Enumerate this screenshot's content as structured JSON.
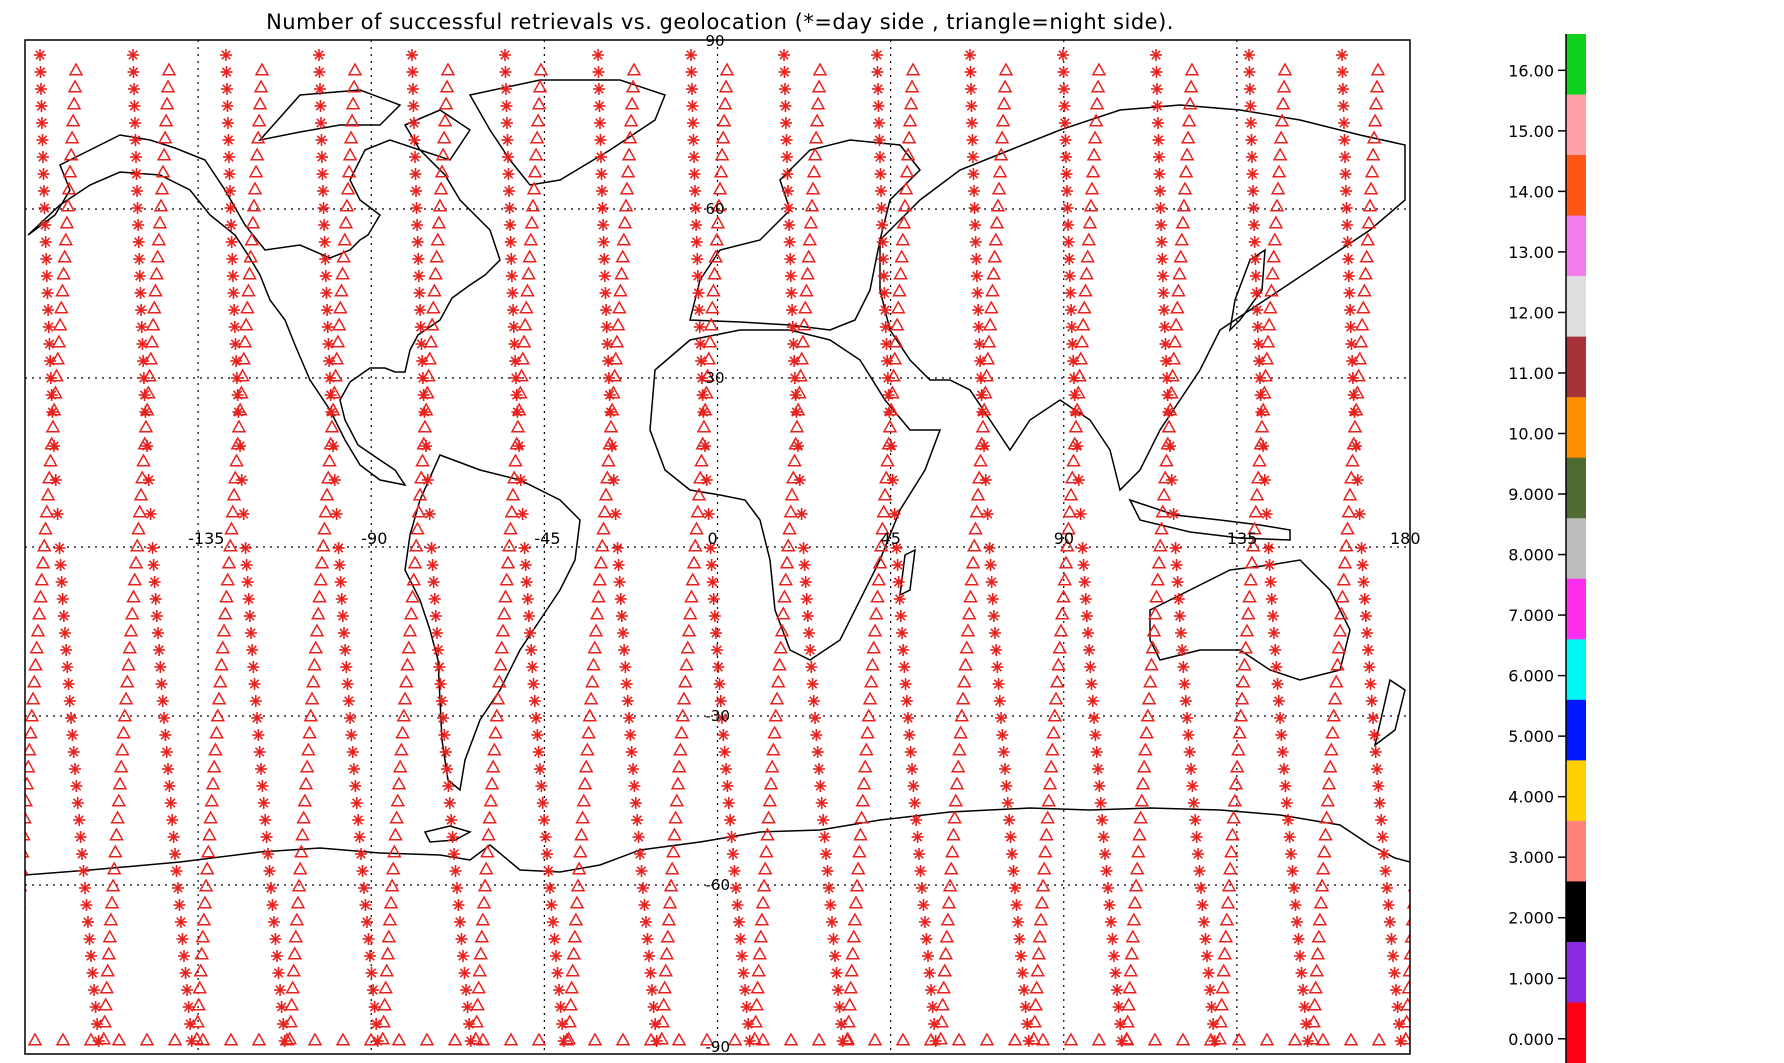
{
  "title": "Number of successful retrievals vs. geolocation (*=day side , triangle=night side).",
  "map": {
    "longitude_labels": [
      "-135",
      "-90",
      "-45",
      "0",
      "45",
      "90",
      "135",
      "180"
    ],
    "latitude_labels": [
      "90",
      "60",
      "30",
      "0",
      "-30",
      "-60",
      "-90"
    ],
    "lon_range": [
      -180,
      180
    ],
    "lat_range": [
      -90,
      90
    ],
    "grid_lons": [
      -135,
      -90,
      -45,
      0,
      45,
      90,
      135
    ],
    "grid_lats": [
      60,
      30,
      0,
      -30,
      -60
    ],
    "grid": "dotted",
    "coastline_color": "#000000"
  },
  "markers": {
    "day_symbol": "asterisk",
    "night_symbol": "triangle",
    "color": "#e8211e",
    "orbit_tracks_note_count": 15
  },
  "colorbar": {
    "labels": [
      "16.00",
      "15.00",
      "14.00",
      "13.00",
      "12.00",
      "11.00",
      "10.00",
      "9.000",
      "8.000",
      "7.000",
      "6.000",
      "5.000",
      "4.000",
      "3.000",
      "2.000",
      "1.000",
      "0.000"
    ],
    "colors": [
      "#0dd11d",
      "#ff9fa6",
      "#ff5615",
      "#f27dec",
      "#dedede",
      "#a8323a",
      "#ff8f00",
      "#4f6b33",
      "#bdbdbd",
      "#ff2eec",
      "#00f5f5",
      "#0017ff",
      "#ffd000",
      "#ff8378",
      "#000000",
      "#8a2be2",
      "#ff0017"
    ]
  }
}
